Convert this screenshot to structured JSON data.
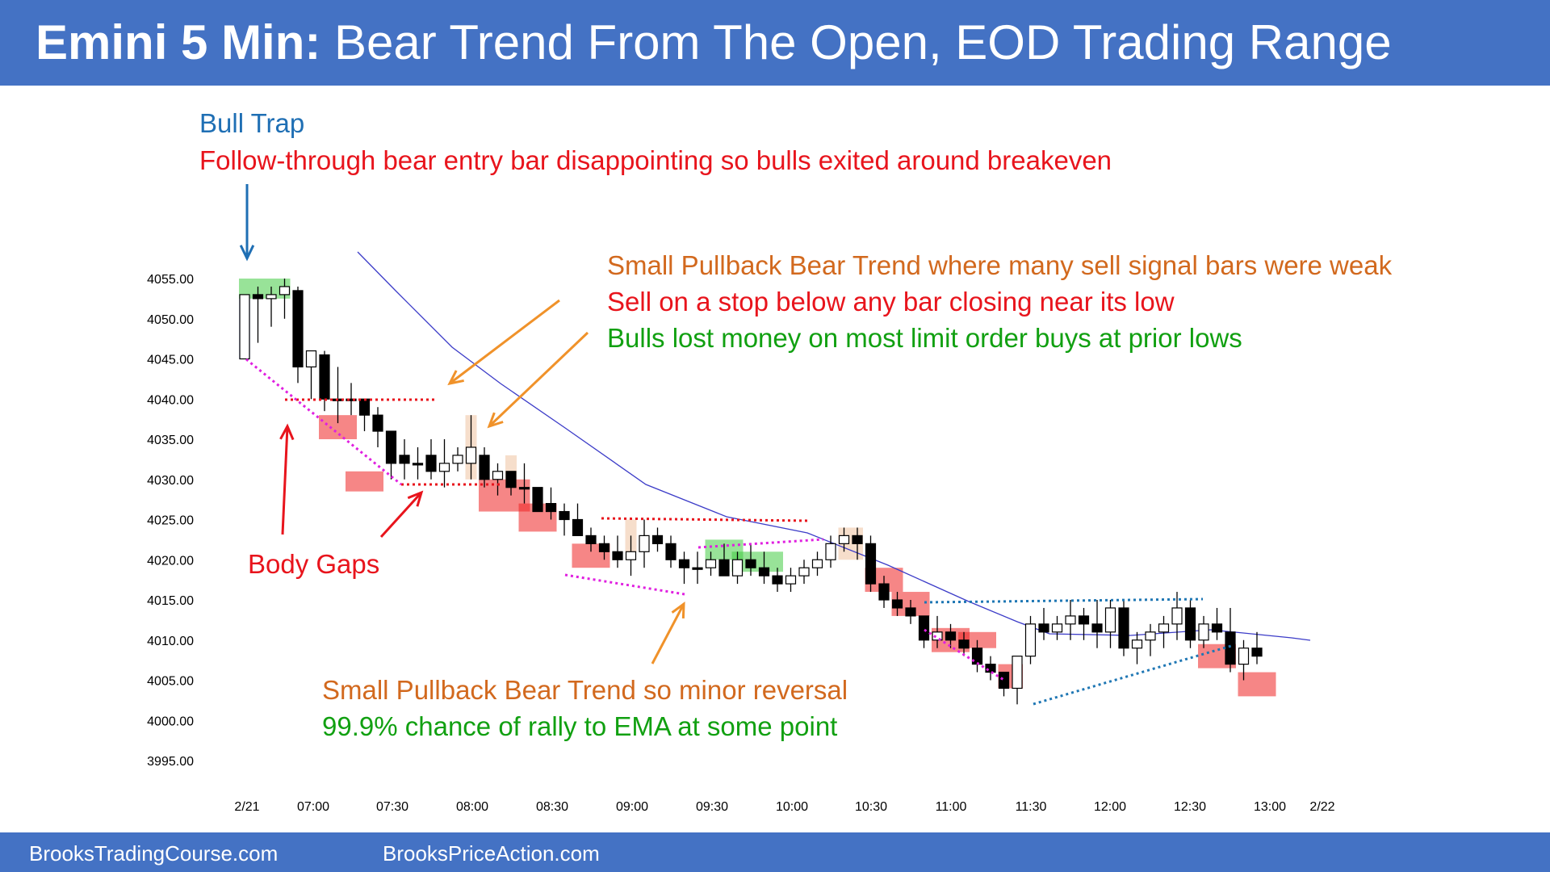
{
  "header": {
    "title_bold": "Emini 5 Min:",
    "title_rest": "Bear Trend From The Open, EOD Trading Range"
  },
  "footer": {
    "left": "BrooksTradingCourse.com",
    "right": "BrooksPriceAction.com"
  },
  "annotations": {
    "bull_trap": "Bull Trap",
    "follow_through": "Follow-through bear entry bar disappointing so bulls exited around breakeven",
    "spbt_weak": "Small Pullback Bear Trend where many sell signal bars were weak",
    "sell_stop": "Sell on a stop below any bar closing near its low",
    "bulls_lost": "Bulls lost money on most limit order buys at prior lows",
    "body_gaps": "Body Gaps",
    "minor_reversal": "Small Pullback Bear Trend so minor reversal",
    "rally_ema": "99.9% chance of rally to EMA at some point"
  },
  "colors": {
    "banner": "#4472c4",
    "blue_text": "#1f6fb4",
    "red_text": "#e8141c",
    "orange_text": "#d2691e",
    "green_text": "#11a011",
    "ema_line": "#3c3cc8",
    "magenta": "#e020e0",
    "teal_dots": "#1f77b4"
  },
  "chart_data": {
    "type": "candlestick",
    "instrument": "Emini",
    "timeframe": "5 Min",
    "y_ticks": [
      "4055.00",
      "4050.00",
      "4045.00",
      "4040.00",
      "4035.00",
      "4030.00",
      "4025.00",
      "4020.00",
      "4015.00",
      "4010.00",
      "4005.00",
      "4000.00",
      "3995.00"
    ],
    "y_values": [
      4055,
      4050,
      4045,
      4040,
      4035,
      4030,
      4025,
      4020,
      4015,
      4010,
      4005,
      4000,
      3995
    ],
    "x_ticks": [
      "2/21",
      "07:00",
      "07:30",
      "08:00",
      "08:30",
      "09:00",
      "09:30",
      "10:00",
      "10:30",
      "11:00",
      "11:30",
      "12:00",
      "12:30",
      "13:00",
      "2/22"
    ],
    "ylim": [
      3994,
      4057
    ],
    "bars_ohlc": [
      [
        4045,
        4053,
        4045,
        4053
      ],
      [
        4053,
        4054,
        4047,
        4052.5
      ],
      [
        4052.5,
        4054,
        4049,
        4053
      ],
      [
        4053,
        4055,
        4050,
        4054
      ],
      [
        4053.5,
        4054,
        4042,
        4044
      ],
      [
        4044,
        4046,
        4040,
        4046
      ],
      [
        4045.5,
        4046,
        4038.5,
        4040
      ],
      [
        4040,
        4044,
        4037,
        4040
      ],
      [
        4040,
        4042,
        4038,
        4040
      ],
      [
        4040,
        4040,
        4036,
        4038
      ],
      [
        4038,
        4039,
        4034,
        4036
      ],
      [
        4036,
        4036,
        4030,
        4032
      ],
      [
        4033,
        4035,
        4030,
        4032
      ],
      [
        4032,
        4034,
        4030,
        4032
      ],
      [
        4033,
        4035,
        4030,
        4031
      ],
      [
        4031,
        4035,
        4029,
        4032
      ],
      [
        4032,
        4034,
        4031,
        4033
      ],
      [
        4032,
        4038,
        4030,
        4034
      ],
      [
        4033,
        4034,
        4029,
        4030
      ],
      [
        4030,
        4032,
        4028,
        4031
      ],
      [
        4031,
        4031,
        4028,
        4029
      ],
      [
        4029,
        4032,
        4027,
        4029
      ],
      [
        4029,
        4029,
        4026,
        4026
      ],
      [
        4027,
        4029,
        4025,
        4026
      ],
      [
        4026,
        4027,
        4023,
        4025
      ],
      [
        4025,
        4027,
        4023,
        4023
      ],
      [
        4023,
        4024,
        4021,
        4022
      ],
      [
        4022,
        4023,
        4020,
        4021
      ],
      [
        4021,
        4023,
        4019,
        4020
      ],
      [
        4020,
        4023,
        4018,
        4021
      ],
      [
        4021,
        4025,
        4019,
        4023
      ],
      [
        4023,
        4024,
        4021,
        4022
      ],
      [
        4022,
        4023,
        4019,
        4020
      ],
      [
        4020,
        4021,
        4017,
        4019
      ],
      [
        4019,
        4021,
        4017,
        4019
      ],
      [
        4019,
        4021,
        4018,
        4020
      ],
      [
        4020,
        4022,
        4018,
        4018
      ],
      [
        4018,
        4021,
        4017,
        4020
      ],
      [
        4020,
        4022,
        4018,
        4019
      ],
      [
        4019,
        4021,
        4017,
        4018
      ],
      [
        4018,
        4019,
        4016,
        4017
      ],
      [
        4017,
        4019,
        4016,
        4018
      ],
      [
        4018,
        4020,
        4017,
        4019
      ],
      [
        4019,
        4021,
        4018,
        4020
      ],
      [
        4020,
        4023,
        4019,
        4022
      ],
      [
        4022,
        4024,
        4021,
        4023
      ],
      [
        4023,
        4024,
        4020,
        4022
      ],
      [
        4022,
        4023,
        4016,
        4017
      ],
      [
        4017,
        4018,
        4014,
        4015
      ],
      [
        4015,
        4016,
        4013,
        4014
      ],
      [
        4014,
        4015,
        4012,
        4013
      ],
      [
        4013,
        4013,
        4009,
        4010
      ],
      [
        4010,
        4013,
        4009,
        4011
      ],
      [
        4011,
        4012,
        4009,
        4010
      ],
      [
        4010,
        4011,
        4008,
        4009
      ],
      [
        4009,
        4010,
        4006,
        4007
      ],
      [
        4007,
        4008,
        4005,
        4006
      ],
      [
        4006,
        4006,
        4003,
        4004
      ],
      [
        4004,
        4008,
        4002,
        4008
      ],
      [
        4008,
        4013,
        4007,
        4012
      ],
      [
        4012,
        4014,
        4010,
        4011
      ],
      [
        4011,
        4013,
        4010,
        4012
      ],
      [
        4012,
        4015,
        4010,
        4013
      ],
      [
        4013,
        4014,
        4010,
        4012
      ],
      [
        4012,
        4015,
        4009,
        4011
      ],
      [
        4011,
        4015,
        4009,
        4014
      ],
      [
        4014,
        4015,
        4008,
        4009
      ],
      [
        4009,
        4011,
        4007,
        4010
      ],
      [
        4010,
        4012,
        4008,
        4011
      ],
      [
        4011,
        4013,
        4009,
        4012
      ],
      [
        4012,
        4016,
        4010,
        4014
      ],
      [
        4014,
        4015,
        4009,
        4010
      ],
      [
        4010,
        4013,
        4009,
        4012
      ],
      [
        4012,
        4014,
        4010,
        4011
      ],
      [
        4011,
        4014,
        4006,
        4007
      ],
      [
        4007,
        4010,
        4005,
        4009
      ],
      [
        4009,
        4011,
        4007,
        4008
      ]
    ]
  }
}
